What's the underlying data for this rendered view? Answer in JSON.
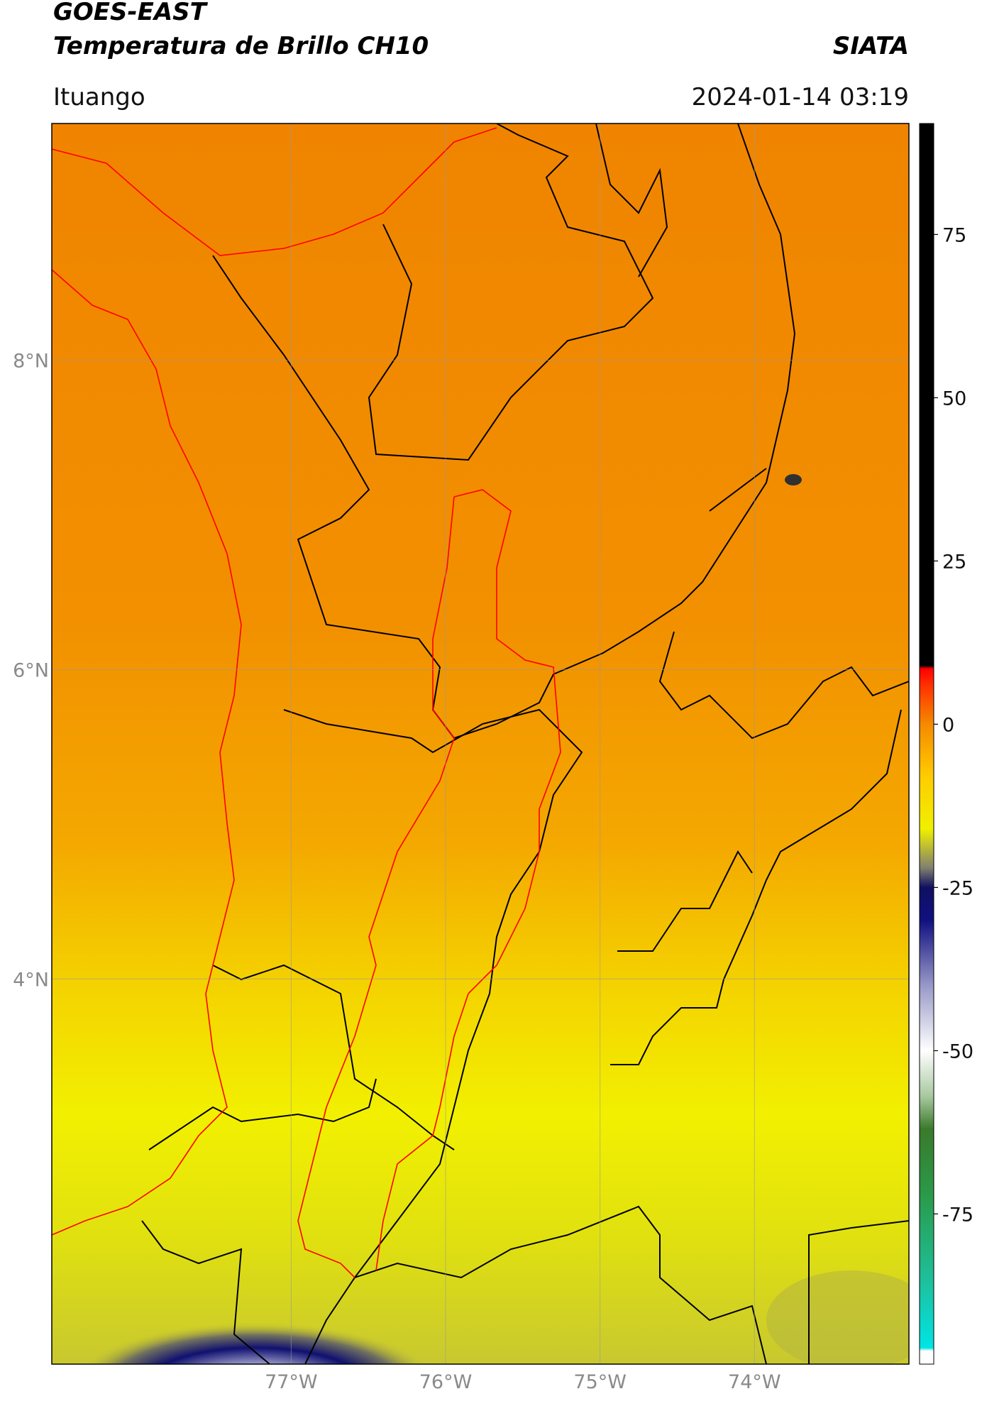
{
  "header": {
    "satellite": "GOES-EAST",
    "product": "Temperatura de Brillo CH10",
    "agency": "SIATA",
    "location": "Ituango",
    "datetime": "2024-01-14 03:19"
  },
  "map": {
    "lonlim": [
      -78.55,
      -73.0
    ],
    "latlim": [
      1.51,
      9.53
    ],
    "lat_ticks": [
      {
        "value": 8,
        "label": "8°N"
      },
      {
        "value": 6,
        "label": "6°N"
      },
      {
        "value": 4,
        "label": "4°N"
      }
    ],
    "lon_ticks": [
      {
        "value": -77,
        "label": "77°W"
      },
      {
        "value": -76,
        "label": "76°W"
      },
      {
        "value": -75,
        "label": "75°W"
      },
      {
        "value": -74,
        "label": "74°W"
      }
    ],
    "grid": true
  },
  "colorbar": {
    "lim": [
      -98,
      92
    ],
    "ticks": [
      75,
      50,
      25,
      0,
      -25,
      -50,
      -75
    ],
    "stops": [
      {
        "value": -98,
        "color": "#ffffff"
      },
      {
        "value": -96,
        "color": "#ffffff"
      },
      {
        "value": -95.5,
        "color": "#00e5e5"
      },
      {
        "value": -85,
        "color": "#1fbf9a"
      },
      {
        "value": -72,
        "color": "#2a9a4a"
      },
      {
        "value": -62,
        "color": "#3a7a2a"
      },
      {
        "value": -57,
        "color": "#a8c8a0"
      },
      {
        "value": -50,
        "color": "#ffffff"
      },
      {
        "value": -40,
        "color": "#9898c8"
      },
      {
        "value": -30,
        "color": "#101080"
      },
      {
        "value": -25,
        "color": "#101060"
      },
      {
        "value": -22,
        "color": "#808070"
      },
      {
        "value": -16,
        "color": "#f0f000"
      },
      {
        "value": -8,
        "color": "#ffcc00"
      },
      {
        "value": 0,
        "color": "#f58a00"
      },
      {
        "value": 6,
        "color": "#ff3000"
      },
      {
        "value": 8.5,
        "color": "#ff0000"
      },
      {
        "value": 9,
        "color": "#000000"
      },
      {
        "value": 92,
        "color": "#000000"
      }
    ]
  }
}
